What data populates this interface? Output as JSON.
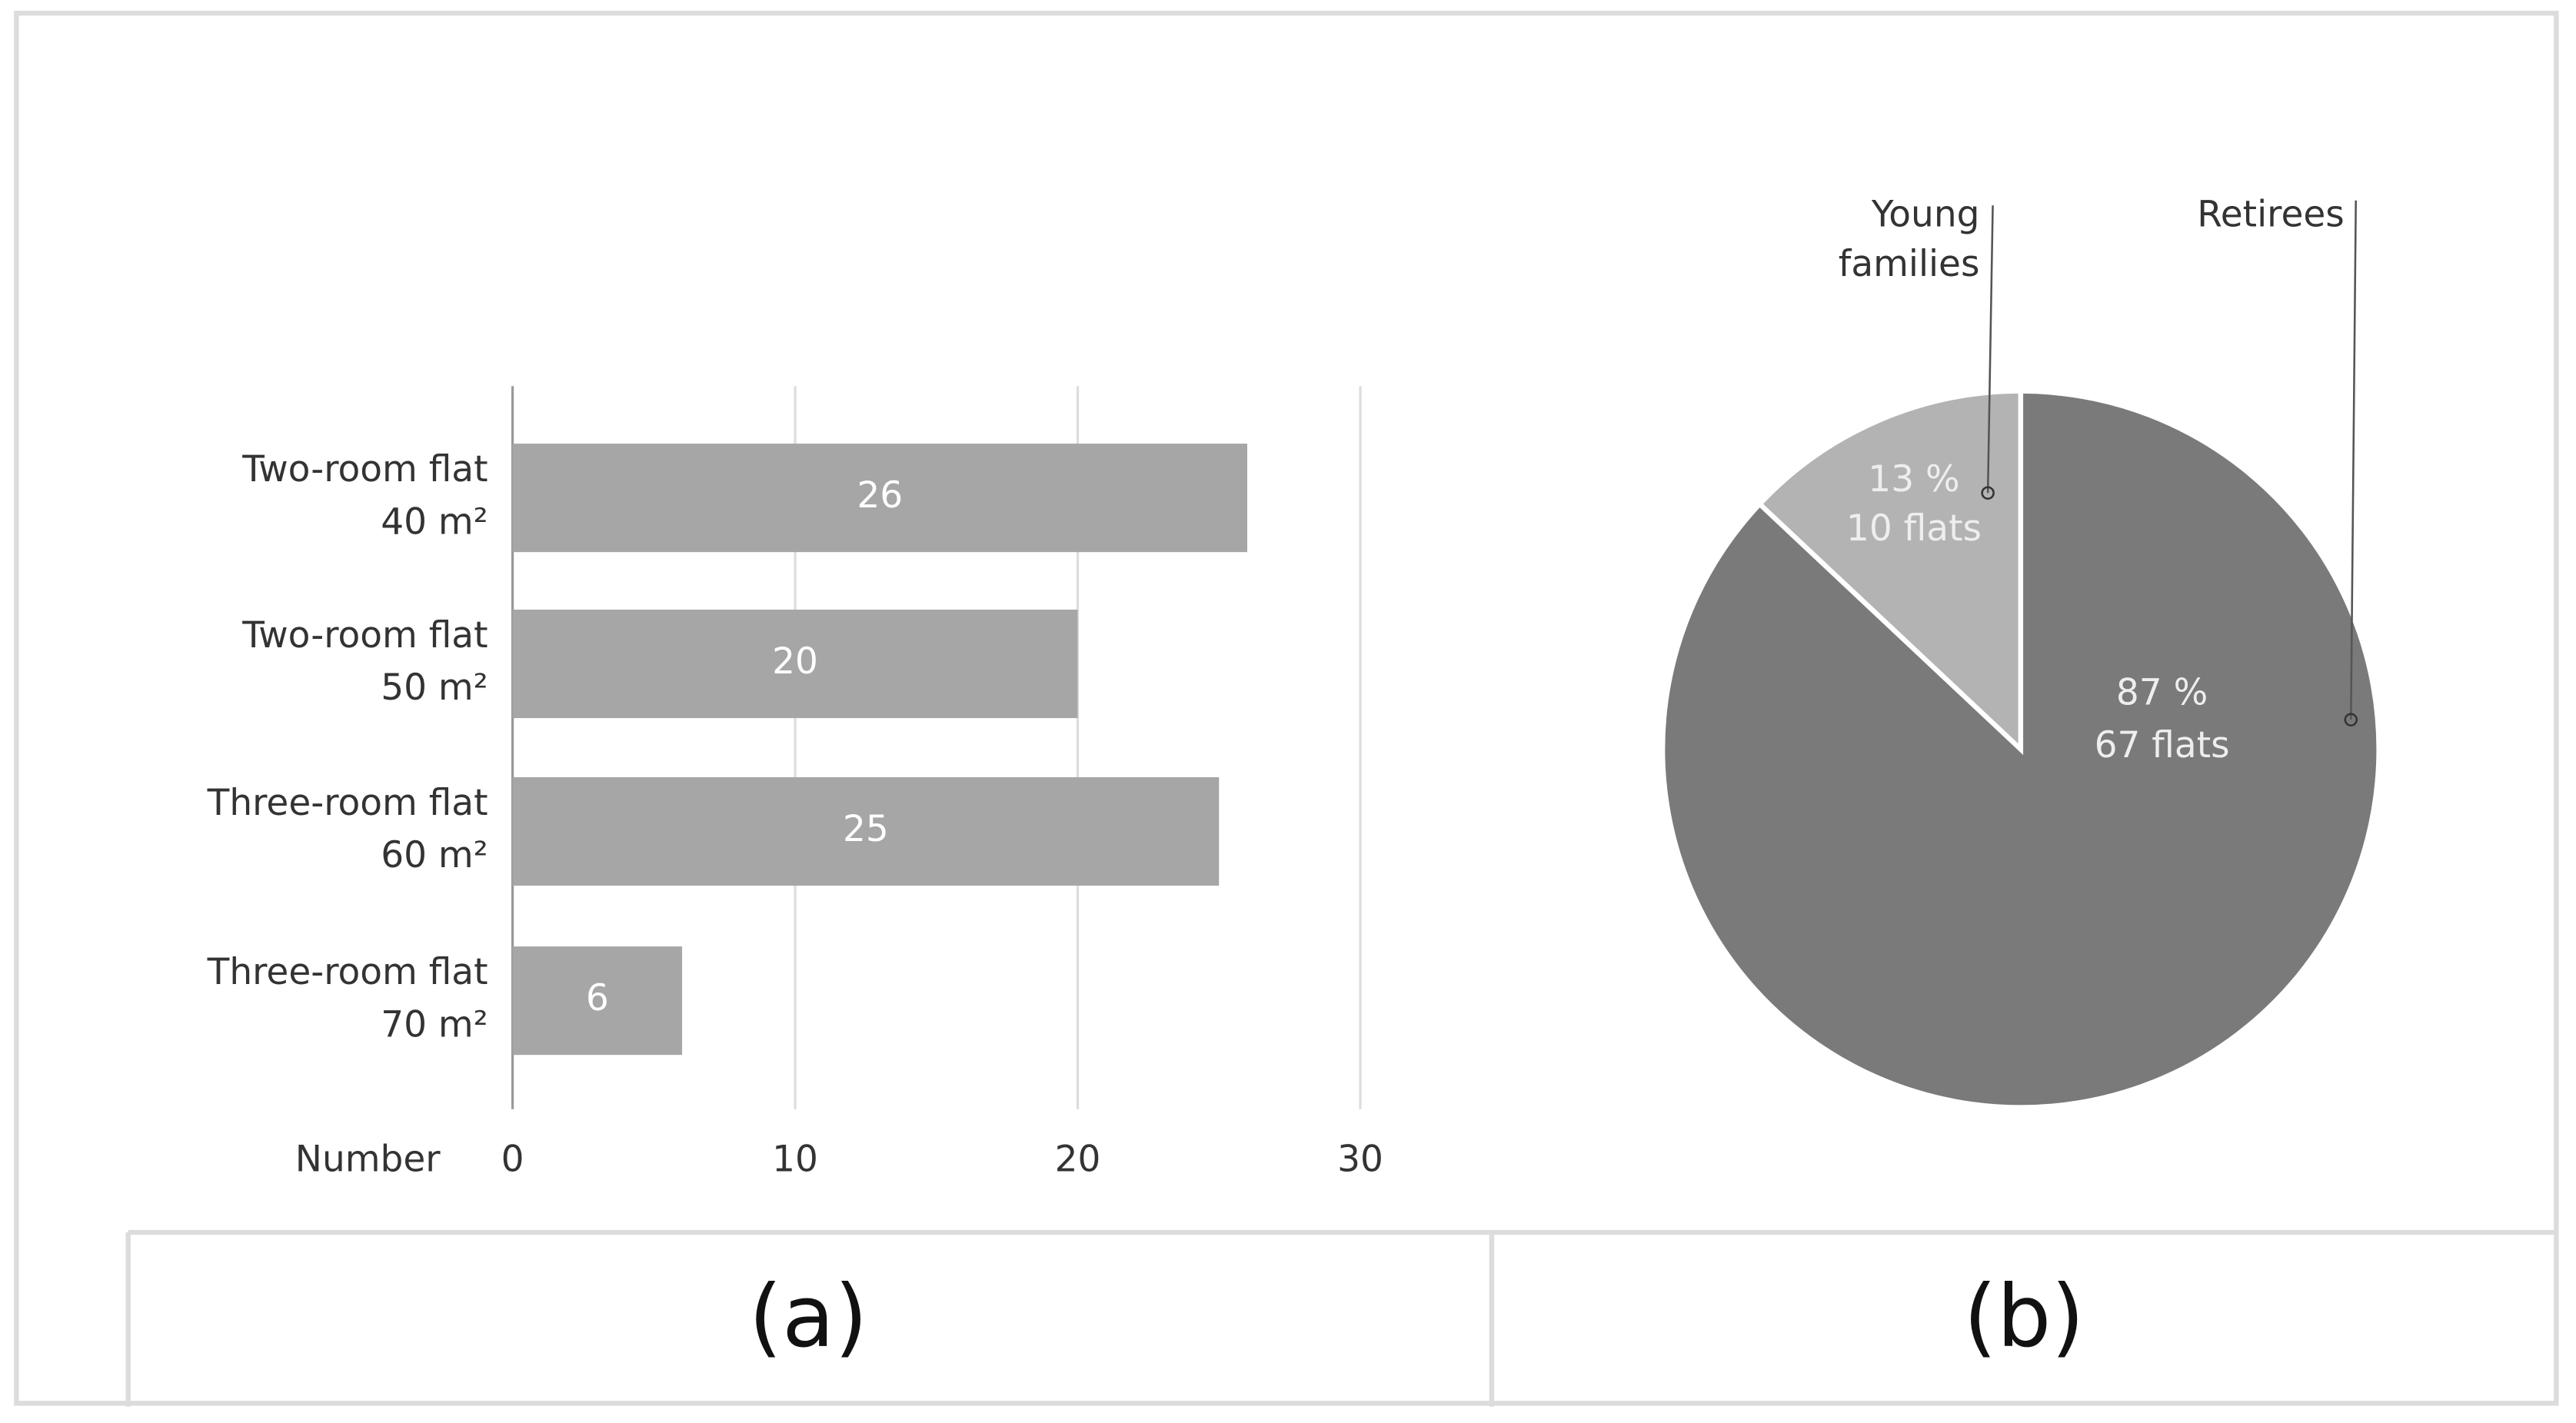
{
  "chart_data": [
    {
      "type": "hbar",
      "panel_label": "(a)",
      "categories": [
        [
          "Two-room flat",
          "40 m²"
        ],
        [
          "Two-room flat",
          "50 m²"
        ],
        [
          "Three-room flat",
          "60 m²"
        ],
        [
          "Three-room flat",
          "70 m²"
        ]
      ],
      "values": [
        26,
        20,
        25,
        6
      ],
      "color": "#a6a6a6",
      "xlabel": "Number",
      "xlim": [
        0,
        30
      ],
      "xticks": [
        0,
        10,
        20,
        30
      ],
      "grid": true
    },
    {
      "type": "pie",
      "panel_label": "(b)",
      "categories": [
        [
          "Young",
          "families"
        ],
        [
          "Retirees"
        ]
      ],
      "values": [
        13,
        87
      ],
      "value_labels": [
        "13 %",
        "87 %"
      ],
      "flat_labels": [
        "10 flats",
        "67 flats"
      ],
      "colors": [
        "#b3b3b3",
        "#7a7a7a"
      ]
    }
  ]
}
